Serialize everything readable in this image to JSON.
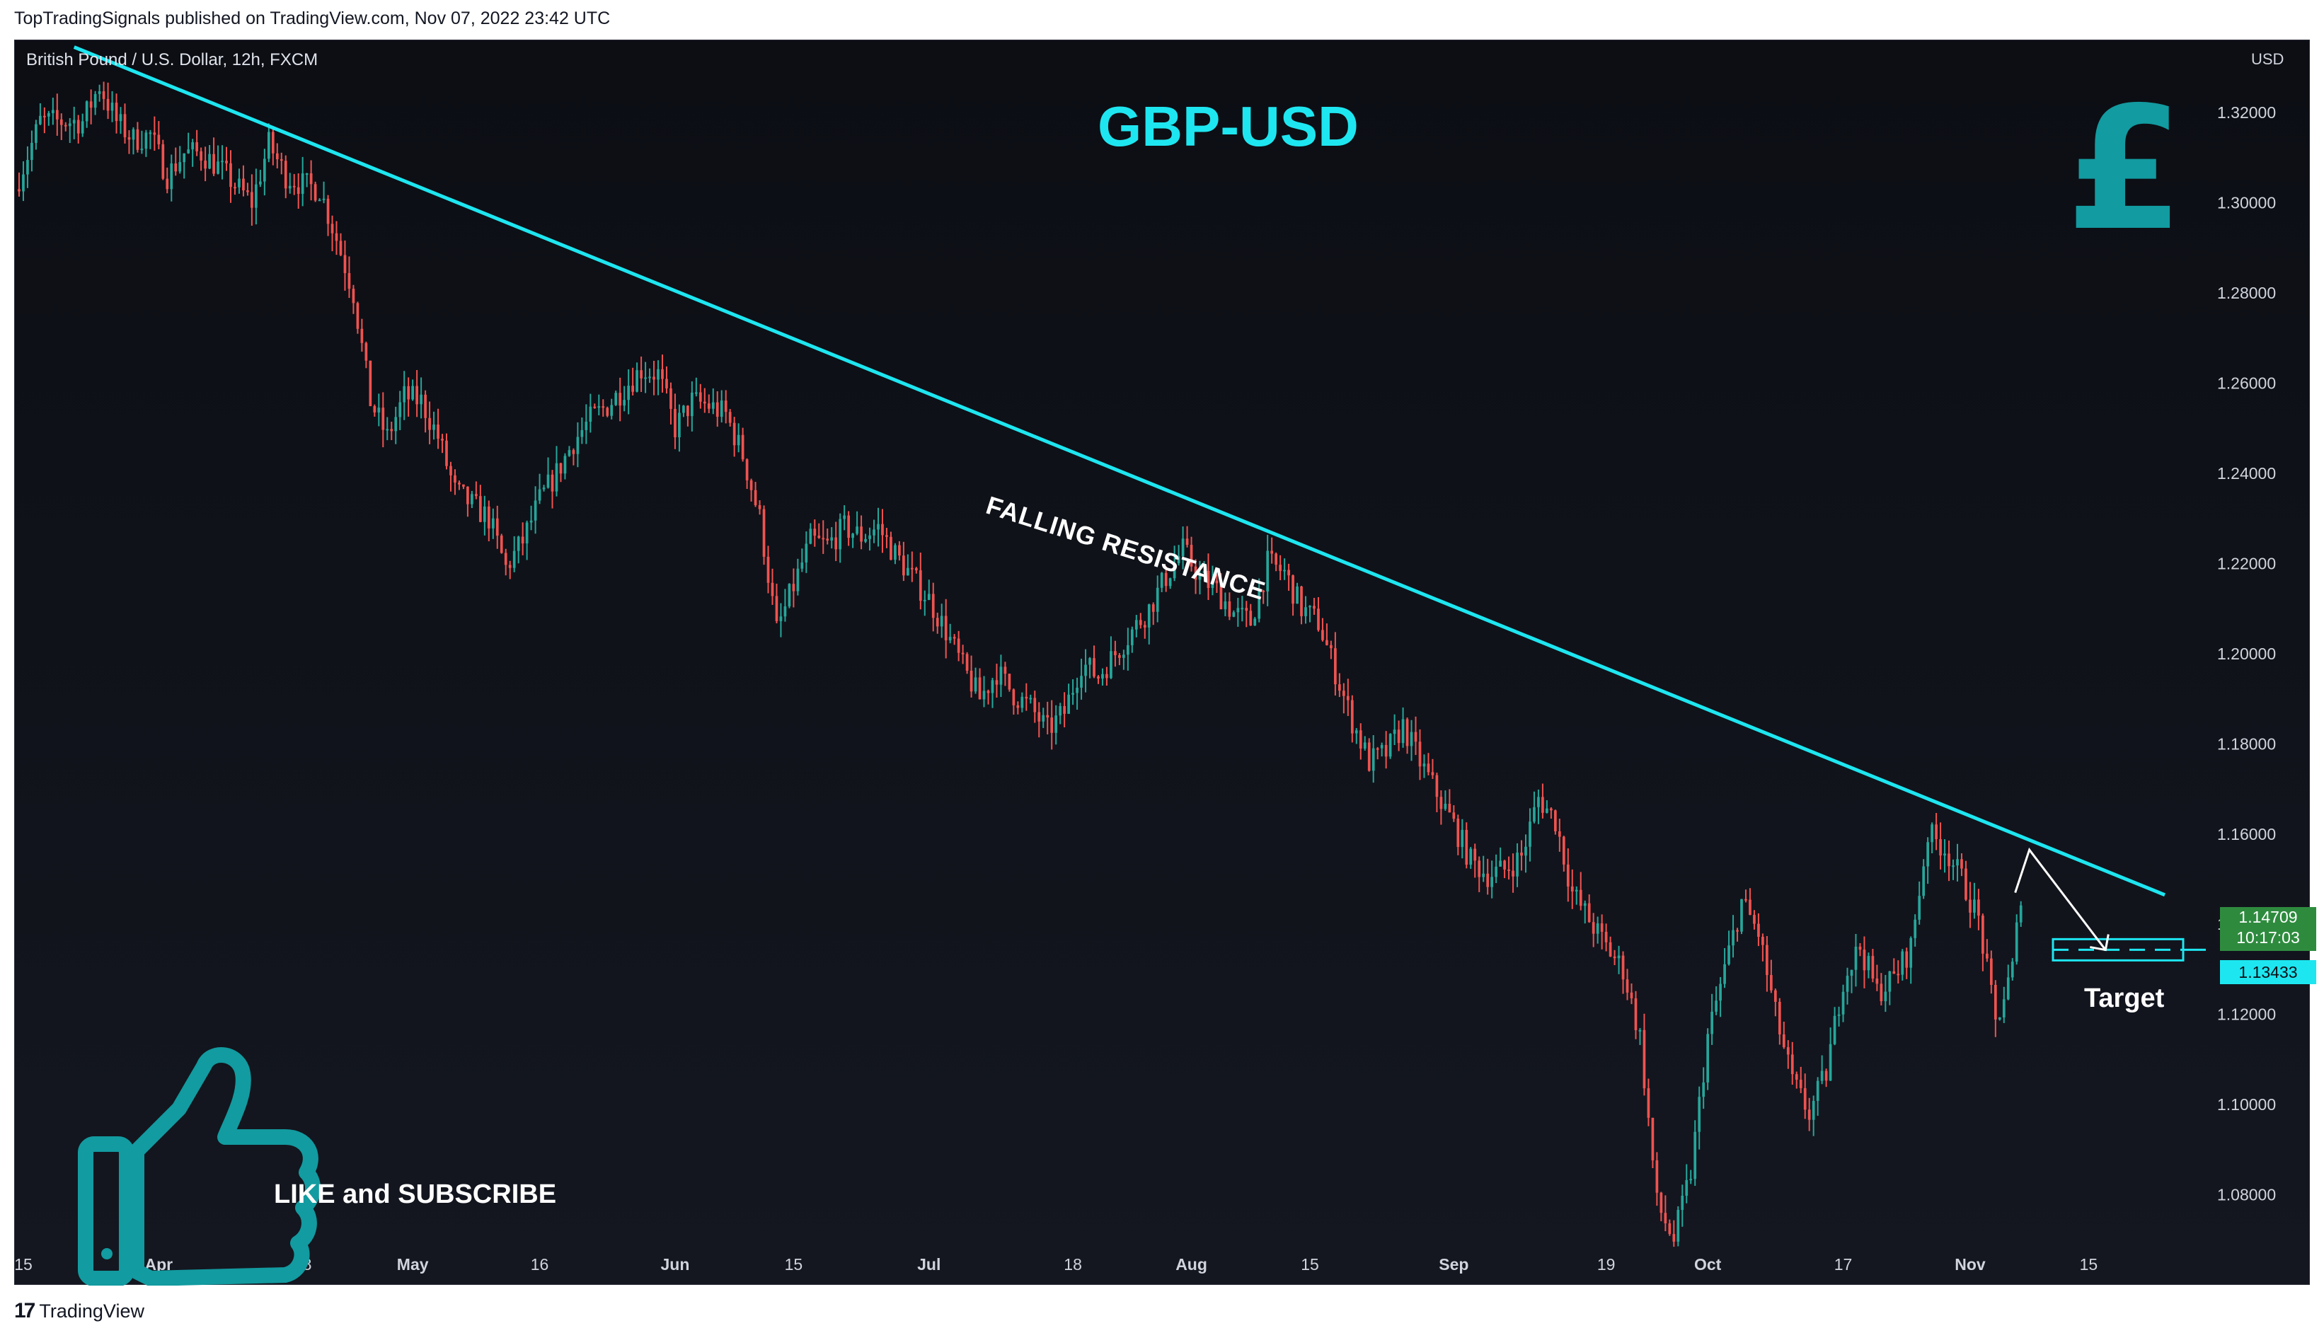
{
  "publisher_line": "TopTradingSignals published on TradingView.com, Nov 07, 2022 23:42 UTC",
  "symbol_line": "British Pound / U.S. Dollar, 12h, FXCM",
  "title": "GBP-USD",
  "currency_label": "USD",
  "currency_icon": "pound-sign-icon",
  "like_text": "LIKE and SUBSCRIBE",
  "like_icon": "thumbs-up-icon",
  "annotation_resistance": "FALLING RESISTANCE",
  "annotation_target": "Target",
  "current_price": "1.14709",
  "countdown": "10:17:03",
  "target_price": "1.13433",
  "footer_logo": "TradingView",
  "colors": {
    "bull": "#26a69a",
    "bear": "#ef5350",
    "accent": "#1ee6f0",
    "icon": "#129ba0",
    "background": "#0c0e14"
  },
  "chart_data": {
    "type": "candlestick",
    "symbol": "GBPUSD",
    "interval": "12h",
    "ylabel": "USD",
    "ylim": [
      1.063,
      1.336
    ],
    "y_ticks": [
      "1.32000",
      "1.30000",
      "1.28000",
      "1.26000",
      "1.24000",
      "1.22000",
      "1.20000",
      "1.18000",
      "1.16000",
      "1.14000",
      "1.12000",
      "1.10000",
      "1.08000"
    ],
    "x_ticks": [
      {
        "label": "15",
        "date": "2022-03-15"
      },
      {
        "label": "Apr",
        "date": "2022-04-01"
      },
      {
        "label": "18",
        "date": "2022-04-18"
      },
      {
        "label": "May",
        "date": "2022-05-01"
      },
      {
        "label": "16",
        "date": "2022-05-16"
      },
      {
        "label": "Jun",
        "date": "2022-06-01"
      },
      {
        "label": "15",
        "date": "2022-06-15"
      },
      {
        "label": "Jul",
        "date": "2022-07-01"
      },
      {
        "label": "18",
        "date": "2022-07-18"
      },
      {
        "label": "Aug",
        "date": "2022-08-01"
      },
      {
        "label": "15",
        "date": "2022-08-15"
      },
      {
        "label": "Sep",
        "date": "2022-09-01"
      },
      {
        "label": "19",
        "date": "2022-09-19"
      },
      {
        "label": "Oct",
        "date": "2022-10-01"
      },
      {
        "label": "17",
        "date": "2022-10-17"
      },
      {
        "label": "Nov",
        "date": "2022-11-01"
      },
      {
        "label": "15",
        "date": "2022-11-15"
      }
    ],
    "x_range": [
      "2022-03-15",
      "2022-11-25"
    ],
    "closes": [
      [
        "2022-03-15",
        1.303
      ],
      [
        "2022-03-18",
        1.318
      ],
      [
        "2022-03-21",
        1.318
      ],
      [
        "2022-03-23",
        1.318
      ],
      [
        "2022-03-25",
        1.326
      ],
      [
        "2022-03-27",
        1.318
      ],
      [
        "2022-03-29",
        1.314
      ],
      [
        "2022-03-31",
        1.315
      ],
      [
        "2022-04-02",
        1.306
      ],
      [
        "2022-04-04",
        1.311
      ],
      [
        "2022-04-06",
        1.311
      ],
      [
        "2022-04-08",
        1.308
      ],
      [
        "2022-04-10",
        1.304
      ],
      [
        "2022-04-12",
        1.3
      ],
      [
        "2022-04-14",
        1.313
      ],
      [
        "2022-04-16",
        1.306
      ],
      [
        "2022-04-18",
        1.304
      ],
      [
        "2022-04-20",
        1.303
      ],
      [
        "2022-04-22",
        1.292
      ],
      [
        "2022-04-24",
        1.28
      ],
      [
        "2022-04-26",
        1.256
      ],
      [
        "2022-04-28",
        1.248
      ],
      [
        "2022-04-30",
        1.257
      ],
      [
        "2022-05-02",
        1.256
      ],
      [
        "2022-05-04",
        1.248
      ],
      [
        "2022-05-06",
        1.236
      ],
      [
        "2022-05-08",
        1.233
      ],
      [
        "2022-05-10",
        1.23
      ],
      [
        "2022-05-12",
        1.219
      ],
      [
        "2022-05-14",
        1.225
      ],
      [
        "2022-05-16",
        1.234
      ],
      [
        "2022-05-18",
        1.24
      ],
      [
        "2022-05-20",
        1.247
      ],
      [
        "2022-05-22",
        1.252
      ],
      [
        "2022-05-24",
        1.255
      ],
      [
        "2022-05-26",
        1.259
      ],
      [
        "2022-05-28",
        1.263
      ],
      [
        "2022-05-30",
        1.262
      ],
      [
        "2022-06-01",
        1.25
      ],
      [
        "2022-06-03",
        1.256
      ],
      [
        "2022-06-05",
        1.255
      ],
      [
        "2022-06-07",
        1.253
      ],
      [
        "2022-06-09",
        1.244
      ],
      [
        "2022-06-11",
        1.23
      ],
      [
        "2022-06-13",
        1.205
      ],
      [
        "2022-06-15",
        1.215
      ],
      [
        "2022-06-17",
        1.225
      ],
      [
        "2022-06-19",
        1.224
      ],
      [
        "2022-06-21",
        1.228
      ],
      [
        "2022-06-23",
        1.226
      ],
      [
        "2022-06-25",
        1.228
      ],
      [
        "2022-06-27",
        1.222
      ],
      [
        "2022-06-29",
        1.217
      ],
      [
        "2022-07-01",
        1.212
      ],
      [
        "2022-07-03",
        1.205
      ],
      [
        "2022-07-05",
        1.197
      ],
      [
        "2022-07-07",
        1.19
      ],
      [
        "2022-07-09",
        1.196
      ],
      [
        "2022-07-11",
        1.191
      ],
      [
        "2022-07-13",
        1.188
      ],
      [
        "2022-07-15",
        1.183
      ],
      [
        "2022-07-17",
        1.187
      ],
      [
        "2022-07-19",
        1.198
      ],
      [
        "2022-07-21",
        1.195
      ],
      [
        "2022-07-23",
        1.2
      ],
      [
        "2022-07-25",
        1.205
      ],
      [
        "2022-07-27",
        1.21
      ],
      [
        "2022-07-29",
        1.217
      ],
      [
        "2022-07-31",
        1.223
      ],
      [
        "2022-08-02",
        1.217
      ],
      [
        "2022-08-04",
        1.214
      ],
      [
        "2022-08-06",
        1.209
      ],
      [
        "2022-08-08",
        1.207
      ],
      [
        "2022-08-10",
        1.22
      ],
      [
        "2022-08-12",
        1.218
      ],
      [
        "2022-08-14",
        1.21
      ],
      [
        "2022-08-16",
        1.207
      ],
      [
        "2022-08-18",
        1.196
      ],
      [
        "2022-08-20",
        1.185
      ],
      [
        "2022-08-22",
        1.176
      ],
      [
        "2022-08-24",
        1.178
      ],
      [
        "2022-08-26",
        1.184
      ],
      [
        "2022-08-28",
        1.176
      ],
      [
        "2022-08-30",
        1.169
      ],
      [
        "2022-09-01",
        1.162
      ],
      [
        "2022-09-03",
        1.154
      ],
      [
        "2022-09-05",
        1.151
      ],
      [
        "2022-09-07",
        1.152
      ],
      [
        "2022-09-09",
        1.155
      ],
      [
        "2022-09-11",
        1.168
      ],
      [
        "2022-09-13",
        1.163
      ],
      [
        "2022-09-15",
        1.147
      ],
      [
        "2022-09-17",
        1.141
      ],
      [
        "2022-09-19",
        1.135
      ],
      [
        "2022-09-21",
        1.13
      ],
      [
        "2022-09-23",
        1.115
      ],
      [
        "2022-09-25",
        1.078
      ],
      [
        "2022-09-27",
        1.07
      ],
      [
        "2022-09-29",
        1.085
      ],
      [
        "2022-10-01",
        1.115
      ],
      [
        "2022-10-03",
        1.13
      ],
      [
        "2022-10-05",
        1.145
      ],
      [
        "2022-10-07",
        1.138
      ],
      [
        "2022-10-09",
        1.12
      ],
      [
        "2022-10-11",
        1.105
      ],
      [
        "2022-10-13",
        1.098
      ],
      [
        "2022-10-15",
        1.107
      ],
      [
        "2022-10-17",
        1.128
      ],
      [
        "2022-10-19",
        1.135
      ],
      [
        "2022-10-21",
        1.125
      ],
      [
        "2022-10-23",
        1.128
      ],
      [
        "2022-10-25",
        1.135
      ],
      [
        "2022-10-27",
        1.16
      ],
      [
        "2022-10-29",
        1.157
      ],
      [
        "2022-10-31",
        1.15
      ],
      [
        "2022-11-02",
        1.141
      ],
      [
        "2022-11-04",
        1.118
      ],
      [
        "2022-11-06",
        1.13
      ],
      [
        "2022-11-07",
        1.147
      ]
    ],
    "series": [
      {
        "name": "",
        "type": "trendline",
        "points": [
          [
            "2022-03-22",
            1.3345
          ],
          [
            "2022-11-24",
            1.1465
          ]
        ]
      },
      {
        "name": "",
        "type": "horizontal_dashed",
        "value": 1.13433
      },
      {
        "name": "",
        "type": "projection",
        "points": [
          [
            "2022-11-08",
            1.1565
          ],
          [
            "2022-11-17",
            1.1343
          ]
        ]
      }
    ],
    "grid": false
  }
}
